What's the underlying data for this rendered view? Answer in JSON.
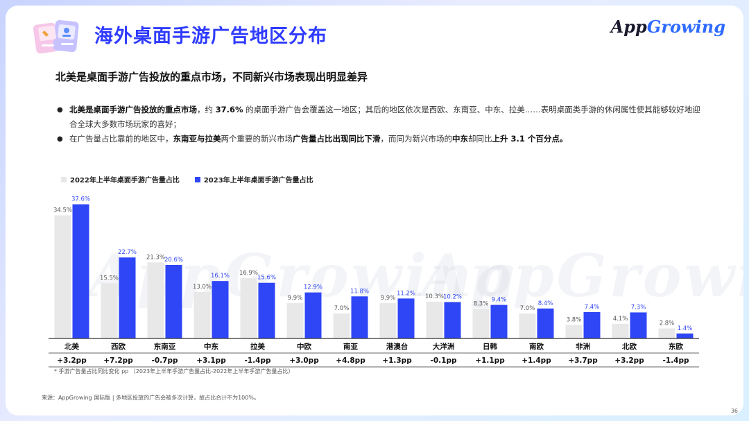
{
  "header": {
    "title": "海外桌面手游广告地区分布",
    "logo_left": "App",
    "logo_right": "Growing"
  },
  "subtitle": "北美是桌面手游广告投放的重点市场，不同新兴市场表现出明显差异",
  "bullets": [
    {
      "parts": [
        {
          "text": "北美是桌面手游广告投放的重点市场",
          "bold": true
        },
        {
          "text": "，约 ",
          "bold": false
        },
        {
          "text": "37.6%",
          "bold": true
        },
        {
          "text": " 的桌面手游广告会覆盖这一地区；其后的地区依次是西欧、东南亚、中东、拉美……表明桌面类手游的休闲属性使其能够较好地迎合全球大多数市场玩家的喜好；",
          "bold": false
        }
      ]
    },
    {
      "parts": [
        {
          "text": "在广告量占比靠前的地区中，",
          "bold": false
        },
        {
          "text": "东南亚与拉美",
          "bold": true
        },
        {
          "text": "两个重要的新兴市场",
          "bold": false
        },
        {
          "text": "广告量占比出现同比下滑",
          "bold": true
        },
        {
          "text": "，而同为新兴市场的",
          "bold": false
        },
        {
          "text": "中东",
          "bold": true
        },
        {
          "text": "却同比",
          "bold": false
        },
        {
          "text": "上升 3.1 个百分点。",
          "bold": true
        }
      ]
    }
  ],
  "chart_data": {
    "type": "bar",
    "categories": [
      "北美",
      "西欧",
      "东南亚",
      "中东",
      "拉美",
      "中欧",
      "南亚",
      "港澳台",
      "大洋洲",
      "日韩",
      "南欧",
      "非洲",
      "北欧",
      "东欧"
    ],
    "series": [
      {
        "name": "2022年上半年桌面手游广告量占比",
        "color": "#e8e8e8",
        "values": [
          34.5,
          15.5,
          21.3,
          13.0,
          16.9,
          9.9,
          7.0,
          9.9,
          10.3,
          8.3,
          7.0,
          3.8,
          4.1,
          2.8
        ],
        "labels": [
          "34.5%",
          "15.5%",
          "21.3%",
          "13.0%",
          "16.9%",
          "9.9%",
          "7.0%",
          "9.9%",
          "10.3%",
          "8.3%",
          "7.0%",
          "3.8%",
          "4.1%",
          "2.8%"
        ]
      },
      {
        "name": "2023年上半年桌面手游广告量占比",
        "color": "#2e46f5",
        "values": [
          37.6,
          22.7,
          20.6,
          16.1,
          15.6,
          12.9,
          11.8,
          11.2,
          10.2,
          9.4,
          8.4,
          7.4,
          7.3,
          1.4
        ],
        "labels": [
          "37.6%",
          "22.7%",
          "20.6%",
          "16.1%",
          "15.6%",
          "12.9%",
          "11.8%",
          "11.2%",
          "10.2%",
          "9.4%",
          "8.4%",
          "7.4%",
          "7.3%",
          "1.4%"
        ]
      }
    ],
    "change": [
      "+3.2pp",
      "+7.2pp",
      "-0.7pp",
      "+3.1pp",
      "-1.4pp",
      "+3.0pp",
      "+4.8pp",
      "+1.3pp",
      "-0.1pp",
      "+1.1pp",
      "+1.4pp",
      "+3.7pp",
      "+3.2pp",
      "-1.4pp"
    ],
    "ylim": [
      0,
      40
    ],
    "legend_position": "top-left",
    "grid": false
  },
  "footnote": "* 手游广告量占比同比变化 pp （2023年上半年手游广告量占比-2022年上半年手游广告量占比）",
  "source": "来源：AppGrowing 国际版 | 多地区投放的广告会被多次计算，故占比合计不为100%。",
  "page_number": "36",
  "watermark": "AppGrowing",
  "colors": {
    "accent": "#2f3bff",
    "bar_2023": "#2e46f5",
    "bar_2022": "#e8e8e8"
  }
}
